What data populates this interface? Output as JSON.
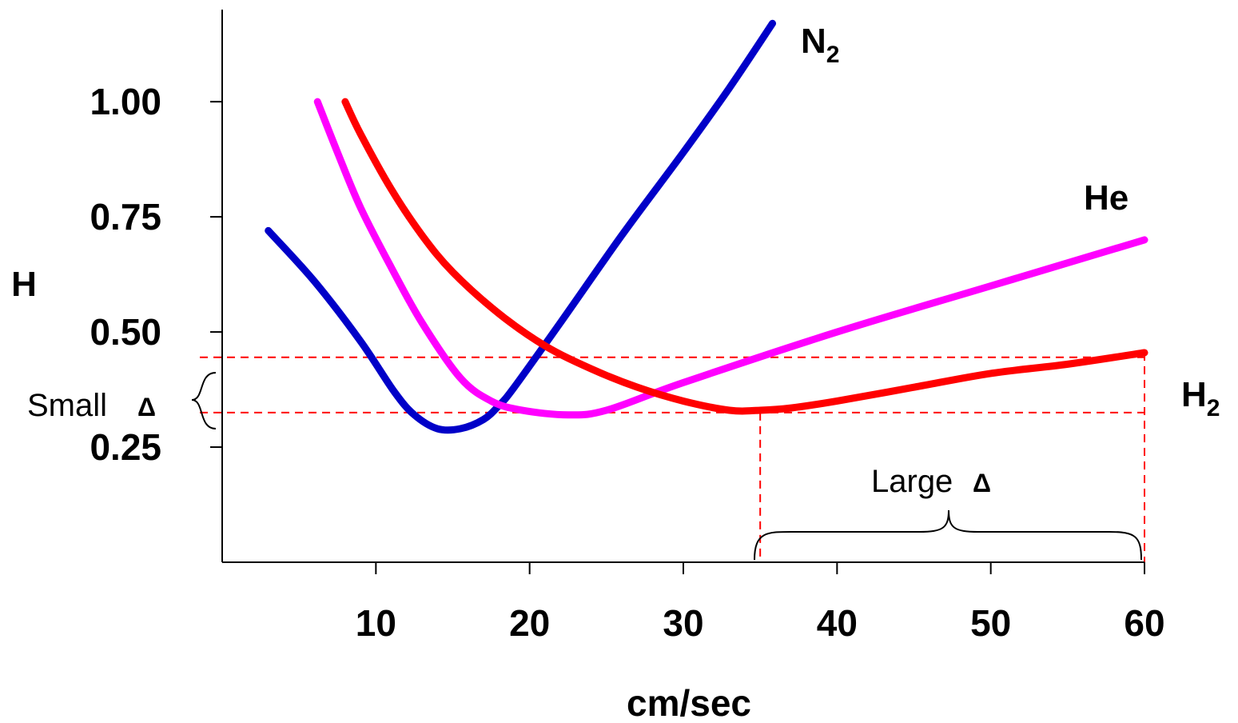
{
  "chart_data": {
    "type": "line",
    "title": "",
    "xlabel": "cm/sec",
    "ylabel": "H",
    "xlim": [
      0,
      60
    ],
    "ylim": [
      0,
      1.2
    ],
    "x_ticks": [
      10,
      20,
      30,
      40,
      50,
      60
    ],
    "x_tick_labels": [
      "10",
      "20",
      "30",
      "40",
      "50",
      "60"
    ],
    "y_ticks": [
      0.25,
      0.5,
      0.75,
      1.0
    ],
    "y_tick_labels": [
      "0.25",
      "0.50",
      "0.75",
      "1.00"
    ],
    "grid": false,
    "series": [
      {
        "name": "N",
        "name_sub": "2",
        "color": "#0000c8",
        "points": [
          [
            3,
            0.72
          ],
          [
            6,
            0.61
          ],
          [
            9,
            0.48
          ],
          [
            11.2,
            0.37
          ],
          [
            12.5,
            0.32
          ],
          [
            14,
            0.29
          ],
          [
            15.5,
            0.29
          ],
          [
            17,
            0.31
          ],
          [
            18,
            0.34
          ],
          [
            19,
            0.38
          ],
          [
            22,
            0.52
          ],
          [
            26,
            0.71
          ],
          [
            30,
            0.89
          ],
          [
            33,
            1.03
          ],
          [
            35.8,
            1.17
          ]
        ]
      },
      {
        "name": "He",
        "name_sub": "",
        "color": "#ff00ff",
        "points": [
          [
            6.2,
            1.0
          ],
          [
            7.5,
            0.89
          ],
          [
            9,
            0.77
          ],
          [
            11,
            0.64
          ],
          [
            13,
            0.52
          ],
          [
            15.5,
            0.4
          ],
          [
            17.5,
            0.35
          ],
          [
            19.5,
            0.33
          ],
          [
            22.5,
            0.32
          ],
          [
            25,
            0.33
          ],
          [
            30,
            0.39
          ],
          [
            40,
            0.5
          ],
          [
            50,
            0.6
          ],
          [
            60,
            0.7
          ]
        ]
      },
      {
        "name": "H",
        "name_sub": "2",
        "color": "#ff0000",
        "points": [
          [
            8,
            1.0
          ],
          [
            9,
            0.93
          ],
          [
            11,
            0.81
          ],
          [
            13,
            0.71
          ],
          [
            15,
            0.63
          ],
          [
            18,
            0.54
          ],
          [
            21,
            0.47
          ],
          [
            24,
            0.42
          ],
          [
            27,
            0.38
          ],
          [
            30,
            0.35
          ],
          [
            33,
            0.33
          ],
          [
            35,
            0.33
          ],
          [
            37,
            0.335
          ],
          [
            40,
            0.35
          ],
          [
            45,
            0.38
          ],
          [
            50,
            0.41
          ],
          [
            55,
            0.43
          ],
          [
            60,
            0.455
          ]
        ]
      }
    ],
    "reference_lines": {
      "color": "#ff0000",
      "h_levels": [
        0.445,
        0.325
      ],
      "v_positions": [
        35,
        60
      ]
    },
    "annotations": {
      "small_label": "Small",
      "large_label": "Large",
      "delta_symbol": "Δ"
    }
  }
}
